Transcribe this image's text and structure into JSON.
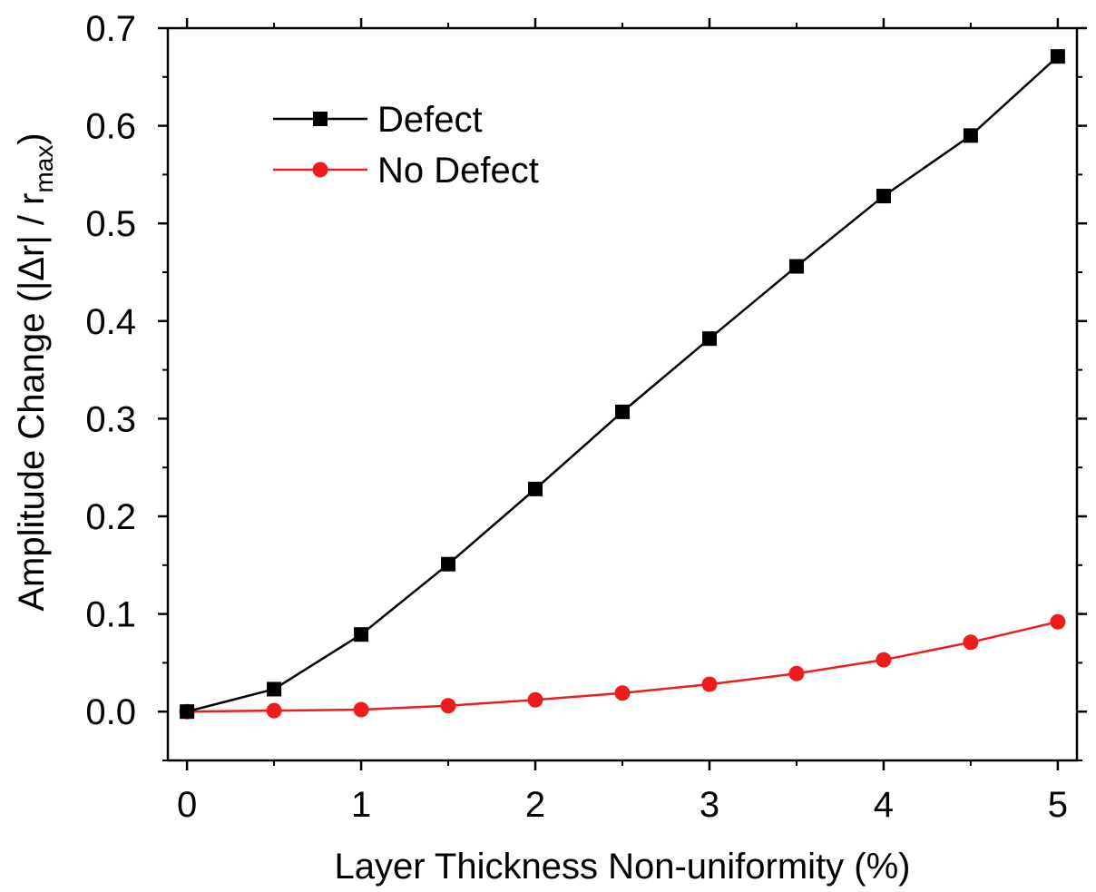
{
  "chart_data": {
    "type": "line",
    "title": "",
    "xlabel": "Layer Thickness Non-uniformity (%)",
    "ylabel": {
      "main": "Amplitude Change (",
      "abs_open": "|",
      "delta": "Δr",
      "abs_close": "|",
      "slash": " / r",
      "subscript": "max",
      "close": ")"
    },
    "xlim": [
      -0.11,
      5.11
    ],
    "ylim": [
      -0.05,
      0.7
    ],
    "x_ticks": [
      0,
      1,
      2,
      3,
      4,
      5
    ],
    "x_tick_labels": [
      "0",
      "1",
      "2",
      "3",
      "4",
      "5"
    ],
    "y_ticks": [
      0.0,
      0.1,
      0.2,
      0.3,
      0.4,
      0.5,
      0.6,
      0.7
    ],
    "y_tick_labels": [
      "0.0",
      "0.1",
      "0.2",
      "0.3",
      "0.4",
      "0.5",
      "0.6",
      "0.7"
    ],
    "legend_position": "top-left",
    "grid": false,
    "x": [
      0,
      0.5,
      1,
      1.5,
      2,
      2.5,
      3,
      3.5,
      4,
      4.5,
      5
    ],
    "series": [
      {
        "name": "Defect",
        "color": "#000000",
        "marker": "square",
        "values": [
          0.0,
          0.023,
          0.079,
          0.151,
          0.228,
          0.307,
          0.382,
          0.456,
          0.528,
          0.59,
          0.671
        ]
      },
      {
        "name": "No Defect",
        "color": "#ee1c1c",
        "marker": "circle",
        "values": [
          0.0,
          0.001,
          0.002,
          0.006,
          0.012,
          0.019,
          0.028,
          0.039,
          0.053,
          0.071,
          0.092
        ]
      }
    ]
  }
}
